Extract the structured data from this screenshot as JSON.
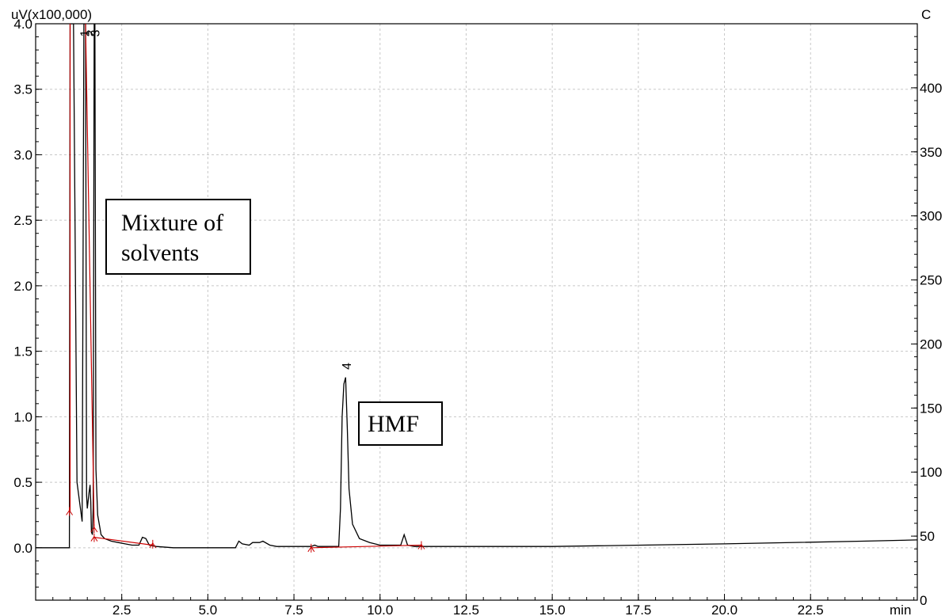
{
  "chart_data": {
    "type": "line",
    "y_unit_label": "uV(x100,000)",
    "x_unit_label": "min",
    "y2_unit_label": "C",
    "xlim": [
      0,
      25.6
    ],
    "ylim": [
      -0.4,
      4.0
    ],
    "y2lim": [
      0,
      450
    ],
    "x_ticks": [
      "2.5",
      "5.0",
      "7.5",
      "10.0",
      "12.5",
      "15.0",
      "17.5",
      "20.0",
      "22.5"
    ],
    "y_ticks": [
      "0.0",
      "0.5",
      "1.0",
      "1.5",
      "2.0",
      "2.5",
      "3.0",
      "3.5",
      "4.0"
    ],
    "y2_ticks": [
      "0",
      "50",
      "100",
      "150",
      "200",
      "250",
      "300",
      "350",
      "400"
    ],
    "grid": true,
    "series": [
      {
        "color": "#000000",
        "x": [
          0.0,
          0.98,
          1.0,
          1.05,
          1.1,
          1.2,
          1.35,
          1.4,
          1.42,
          1.45,
          1.48,
          1.5,
          1.55,
          1.58,
          1.6,
          1.62,
          1.65,
          1.67,
          1.7,
          1.72,
          1.75,
          1.8,
          1.9,
          2.0,
          2.2,
          2.4,
          2.6,
          2.8,
          3.0,
          3.1,
          3.2,
          3.3,
          3.5,
          4.0,
          5.0,
          5.8,
          5.9,
          6.0,
          6.2,
          6.3,
          6.5,
          6.6,
          6.8,
          7.0,
          7.5,
          8.0,
          8.1,
          8.2,
          8.4,
          8.8,
          8.85,
          8.9,
          8.95,
          9.0,
          9.05,
          9.1,
          9.2,
          9.4,
          9.7,
          10.0,
          10.5,
          10.6,
          10.7,
          10.8,
          11.0,
          12.0,
          15.0,
          20.0,
          24.0,
          25.6
        ],
        "y": [
          0.0,
          0.0,
          4.0,
          4.0,
          4.0,
          0.5,
          0.2,
          4.0,
          4.0,
          4.0,
          0.4,
          0.3,
          0.42,
          0.48,
          0.35,
          0.12,
          0.1,
          0.3,
          4.0,
          4.0,
          0.6,
          0.25,
          0.1,
          0.07,
          0.05,
          0.04,
          0.03,
          0.02,
          0.02,
          0.08,
          0.07,
          0.02,
          0.01,
          0.0,
          0.0,
          0.0,
          0.05,
          0.03,
          0.02,
          0.04,
          0.04,
          0.05,
          0.02,
          0.01,
          0.01,
          0.01,
          0.02,
          0.01,
          0.01,
          0.01,
          0.3,
          1.0,
          1.25,
          1.3,
          0.9,
          0.45,
          0.18,
          0.07,
          0.04,
          0.02,
          0.02,
          0.02,
          0.1,
          0.02,
          0.01,
          0.01,
          0.01,
          0.03,
          0.05,
          0.06
        ]
      }
    ],
    "baselines": [
      {
        "color": "#cc0000",
        "x": [
          1.0,
          1.0
        ],
        "y": [
          0.28,
          4.0
        ]
      },
      {
        "color": "#cc0000",
        "x": [
          1.45,
          1.7
        ],
        "y": [
          4.0,
          0.15
        ]
      },
      {
        "color": "#cc0000",
        "x": [
          1.7,
          3.4
        ],
        "y": [
          0.08,
          0.02
        ]
      },
      {
        "color": "#cc0000",
        "x": [
          8.0,
          11.2
        ],
        "y": [
          0.0,
          0.02
        ]
      }
    ],
    "integration_marks": [
      {
        "x": 0.98,
        "y": 0.28
      },
      {
        "x": 1.7,
        "y": 0.15
      },
      {
        "x": 1.7,
        "y": 0.08
      },
      {
        "x": 3.4,
        "y": 0.03
      },
      {
        "x": 8.0,
        "y": 0.0
      },
      {
        "x": 11.2,
        "y": 0.02
      }
    ],
    "peak_labels": [
      {
        "label": "1",
        "x": 1.55,
        "y": 3.9
      },
      {
        "label": "2",
        "x": 1.72,
        "y": 3.9
      },
      {
        "label": "3",
        "x": 1.85,
        "y": 3.9
      },
      {
        "label": "4",
        "x": 9.15,
        "y": 1.36
      }
    ],
    "annotations": [
      "Mixture of\nsolvents",
      "HMF"
    ]
  }
}
